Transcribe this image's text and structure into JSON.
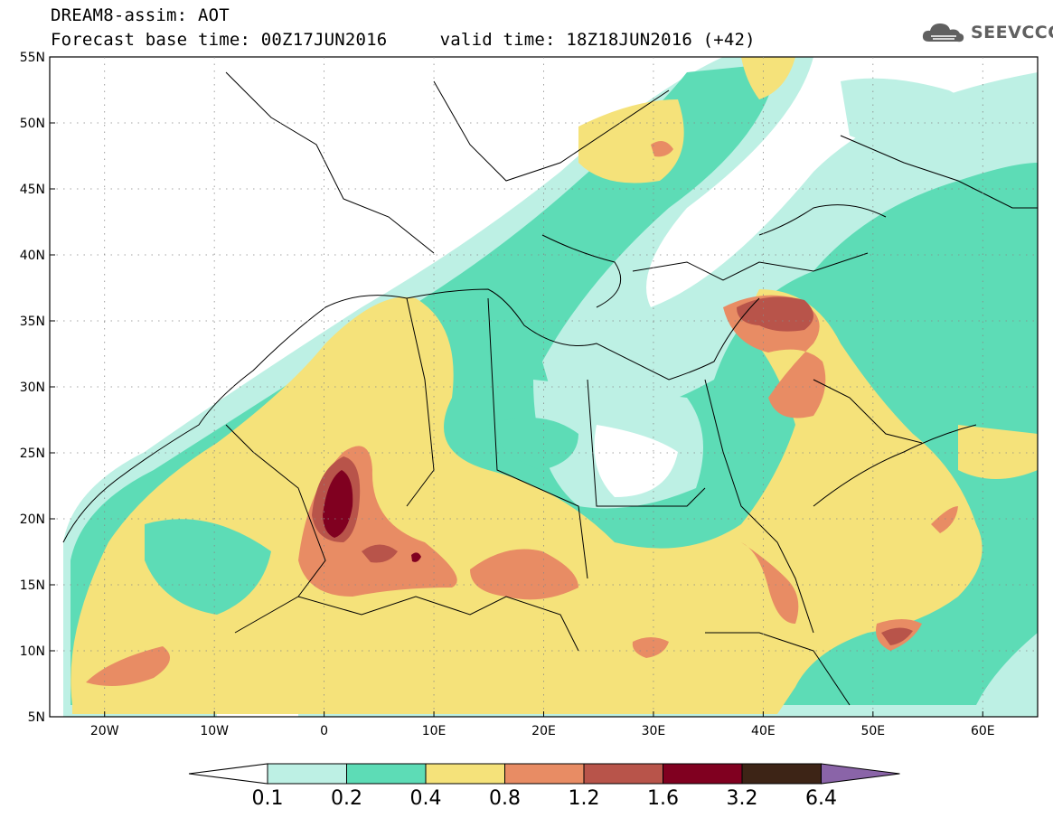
{
  "header": {
    "line1": "DREAM8-assim: AOT",
    "base_time_label": "Forecast base time: 00Z17JUN2016",
    "valid_time_label": "valid time: 18Z18JUN2016 (+42)"
  },
  "logo": {
    "text": "SEEVCCC",
    "icon": "cloud-icon"
  },
  "map": {
    "lat_ticks": [
      "55N",
      "50N",
      "45N",
      "40N",
      "35N",
      "30N",
      "25N",
      "20N",
      "15N",
      "10N",
      "5N"
    ],
    "lon_ticks": [
      "20W",
      "10W",
      "0",
      "10E",
      "20E",
      "30E",
      "40E",
      "50E",
      "60E"
    ],
    "lat_range": [
      5,
      55
    ],
    "lon_range": [
      -25,
      65
    ],
    "grid": "dotted"
  },
  "colorbar": {
    "thresholds": [
      "0.1",
      "0.2",
      "0.4",
      "0.8",
      "1.2",
      "1.6",
      "3.2",
      "6.4"
    ],
    "colors": [
      "#ffffff",
      "#bdf0e4",
      "#5ddcb6",
      "#f5e27a",
      "#e88c64",
      "#b8544a",
      "#800020",
      "#3d2416",
      "#8a64a8"
    ]
  }
}
